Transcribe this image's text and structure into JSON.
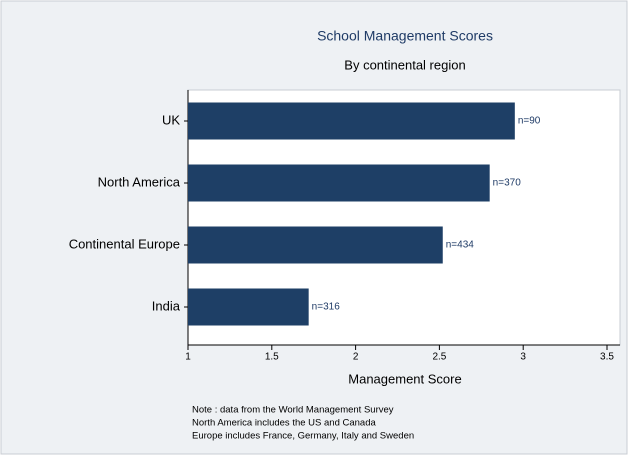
{
  "chart_data": {
    "type": "bar",
    "orientation": "horizontal",
    "title": "School Management Scores",
    "subtitle": "By continental region",
    "x_label": "Management Score",
    "categories": [
      "UK",
      "North America",
      "Continental Europe",
      "India"
    ],
    "values": [
      2.95,
      2.8,
      2.52,
      1.72
    ],
    "bar_labels": [
      "n=90",
      "n=370",
      "n=434",
      "n=316"
    ],
    "color": "#1e3f66",
    "xlim": [
      1,
      3.5
    ],
    "xticks": [
      1,
      1.5,
      2,
      2.5,
      3,
      3.5
    ],
    "notes": [
      "Note : data from the World Management Survey",
      "North America includes the US and Canada",
      "Europe includes France, Germany, Italy and Sweden"
    ]
  }
}
